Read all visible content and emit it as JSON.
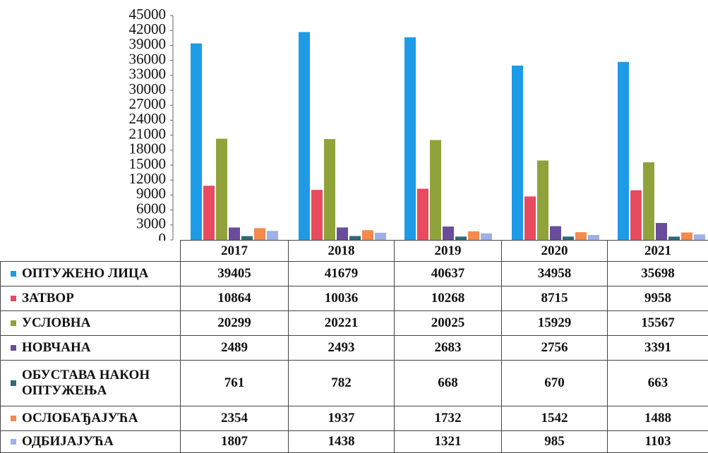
{
  "chart_data": {
    "type": "bar",
    "categories": [
      "2017",
      "2018",
      "2019",
      "2020",
      "2021"
    ],
    "series": [
      {
        "name": "ОПТУЖЕНО ЛИЦА",
        "color": "#1e9be6",
        "values": [
          39405,
          41679,
          40637,
          34958,
          35698
        ]
      },
      {
        "name": "ЗАТВОР",
        "color": "#e84a5f",
        "values": [
          10864,
          10036,
          10268,
          8715,
          9958
        ]
      },
      {
        "name": "УСЛОВНА",
        "color": "#8fa33a",
        "values": [
          20299,
          20221,
          20025,
          15929,
          15567
        ]
      },
      {
        "name": "НОВЧАНА",
        "color": "#6a4c9c",
        "values": [
          2489,
          2493,
          2683,
          2756,
          3391
        ]
      },
      {
        "name": "ОБУСТАВА НАКОН ОПТУЖЕЊА",
        "color": "#2e6b78",
        "values": [
          761,
          782,
          668,
          670,
          663
        ]
      },
      {
        "name": "ОСЛОБАЂАЈУЋА",
        "color": "#f58a4b",
        "values": [
          2354,
          1937,
          1732,
          1542,
          1488
        ]
      },
      {
        "name": "ОДБИЈАЈУЋА",
        "color": "#a0b0e8",
        "values": [
          1807,
          1438,
          1321,
          985,
          1103
        ]
      }
    ],
    "ylim": [
      0,
      45000
    ],
    "yticks": [
      0,
      3000,
      6000,
      9000,
      12000,
      15000,
      18000,
      21000,
      24000,
      27000,
      30000,
      33000,
      36000,
      39000,
      42000,
      45000
    ]
  }
}
